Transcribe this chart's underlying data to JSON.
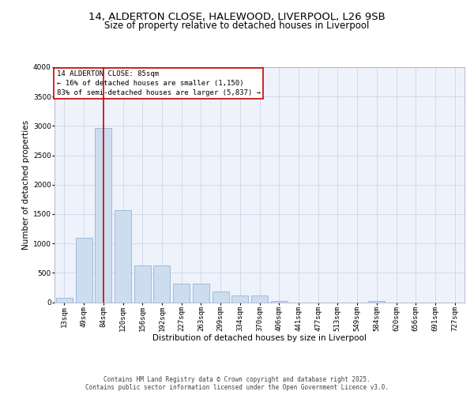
{
  "title_line1": "14, ALDERTON CLOSE, HALEWOOD, LIVERPOOL, L26 9SB",
  "title_line2": "Size of property relative to detached houses in Liverpool",
  "xlabel": "Distribution of detached houses by size in Liverpool",
  "ylabel": "Number of detached properties",
  "categories": [
    "13sqm",
    "49sqm",
    "84sqm",
    "120sqm",
    "156sqm",
    "192sqm",
    "227sqm",
    "263sqm",
    "299sqm",
    "334sqm",
    "370sqm",
    "406sqm",
    "441sqm",
    "477sqm",
    "513sqm",
    "549sqm",
    "584sqm",
    "620sqm",
    "656sqm",
    "691sqm",
    "727sqm"
  ],
  "values": [
    75,
    1090,
    2960,
    1560,
    620,
    620,
    310,
    310,
    175,
    110,
    110,
    25,
    0,
    0,
    0,
    0,
    25,
    0,
    0,
    0,
    0
  ],
  "bar_color": "#ccddf0",
  "bar_edge_color": "#88aacc",
  "vline_x": 2,
  "vline_color": "#cc0000",
  "annotation_box_text": "14 ALDERTON CLOSE: 85sqm\n← 16% of detached houses are smaller (1,150)\n83% of semi-detached houses are larger (5,837) →",
  "annotation_box_color": "#cc0000",
  "ylim": [
    0,
    4000
  ],
  "yticks": [
    0,
    500,
    1000,
    1500,
    2000,
    2500,
    3000,
    3500,
    4000
  ],
  "background_color": "#eef2fb",
  "footer_text": "Contains HM Land Registry data © Crown copyright and database right 2025.\nContains public sector information licensed under the Open Government Licence v3.0.",
  "title_fontsize": 9.5,
  "title2_fontsize": 8.5,
  "axis_label_fontsize": 7.5,
  "tick_fontsize": 6.5,
  "annotation_fontsize": 6.5,
  "footer_fontsize": 5.5
}
